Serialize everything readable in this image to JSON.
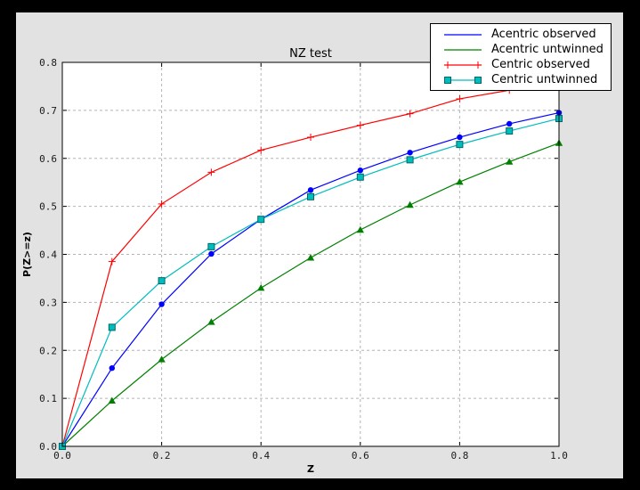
{
  "window": {
    "frame_color": "#000000",
    "figure_background": "#e2e2e2",
    "axes_background": "#ffffff",
    "grid_color": "#b4b4b4",
    "spine_color": "#000000"
  },
  "chart_data": {
    "type": "line",
    "title": "NZ test",
    "xlabel": "Z",
    "ylabel": "P(Z>=z)",
    "xlim": [
      0.0,
      1.0
    ],
    "ylim": [
      0.0,
      0.8
    ],
    "xticks": [
      "0.0",
      "0.2",
      "0.4",
      "0.6",
      "0.8",
      "1.0"
    ],
    "yticks": [
      "0.0",
      "0.1",
      "0.2",
      "0.3",
      "0.4",
      "0.5",
      "0.6",
      "0.7",
      "0.8"
    ],
    "grid": true,
    "legend_position": "upper right",
    "x": [
      0.0,
      0.1,
      0.2,
      0.3,
      0.4,
      0.5,
      0.6,
      0.7,
      0.8,
      0.9,
      1.0
    ],
    "series": [
      {
        "name": "Acentric observed",
        "color": "#0000ff",
        "marker": "circle",
        "legend_sample_markers": false,
        "values": [
          0.0,
          0.163,
          0.296,
          0.401,
          0.473,
          0.534,
          0.575,
          0.612,
          0.644,
          0.672,
          0.695
        ]
      },
      {
        "name": "Acentric untwinned",
        "color": "#008000",
        "marker": "triangle",
        "legend_sample_markers": false,
        "values": [
          0.0,
          0.095,
          0.181,
          0.259,
          0.33,
          0.393,
          0.451,
          0.503,
          0.551,
          0.593,
          0.632
        ]
      },
      {
        "name": "Centric observed",
        "color": "#ff0000",
        "marker": "plus",
        "legend_sample_markers": true,
        "values": [
          0.0,
          0.385,
          0.505,
          0.571,
          0.617,
          0.644,
          0.669,
          0.693,
          0.724,
          0.742,
          0.758
        ]
      },
      {
        "name": "Centric untwinned",
        "color": "#00bdbd",
        "marker": "square",
        "marker_edge": "#006868",
        "legend_sample_markers": true,
        "values": [
          0.0,
          0.248,
          0.345,
          0.416,
          0.473,
          0.52,
          0.561,
          0.597,
          0.629,
          0.657,
          0.683
        ]
      }
    ]
  }
}
